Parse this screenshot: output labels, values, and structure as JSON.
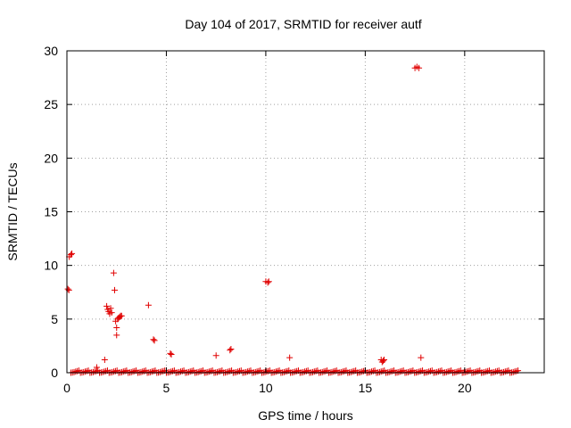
{
  "chart_data": {
    "type": "scatter",
    "title": "Day 104 of 2017, SRMTID for receiver autf",
    "xlabel": "GPS time / hours",
    "ylabel": "SRMTID / TECUs",
    "xlim": [
      0,
      24
    ],
    "ylim": [
      0,
      30
    ],
    "xticks": [
      0,
      5,
      10,
      15,
      20
    ],
    "yticks": [
      0,
      5,
      10,
      15,
      20,
      25,
      30
    ],
    "grid": true,
    "marker": "+",
    "colors": {
      "series": "#e00000",
      "grid": "#a0a0a0",
      "axis": "#000000"
    },
    "points": [
      [
        0.05,
        7.8
      ],
      [
        0.1,
        7.7
      ],
      [
        0.12,
        10.8
      ],
      [
        0.2,
        11.0
      ],
      [
        0.25,
        11.1
      ],
      [
        1.5,
        0.5
      ],
      [
        1.9,
        1.2
      ],
      [
        2.0,
        6.2
      ],
      [
        2.05,
        5.9
      ],
      [
        2.1,
        5.7
      ],
      [
        2.15,
        5.5
      ],
      [
        2.2,
        6.0
      ],
      [
        2.25,
        5.6
      ],
      [
        2.35,
        9.3
      ],
      [
        2.4,
        7.7
      ],
      [
        2.45,
        4.8
      ],
      [
        2.5,
        4.2
      ],
      [
        2.5,
        3.5
      ],
      [
        2.55,
        5.0
      ],
      [
        2.6,
        5.1
      ],
      [
        2.65,
        5.2
      ],
      [
        2.7,
        5.3
      ],
      [
        2.75,
        5.3
      ],
      [
        4.1,
        6.3
      ],
      [
        4.35,
        3.1
      ],
      [
        4.4,
        3.0
      ],
      [
        5.2,
        1.8
      ],
      [
        5.25,
        1.7
      ],
      [
        7.5,
        1.6
      ],
      [
        8.2,
        2.1
      ],
      [
        8.25,
        2.2
      ],
      [
        10.0,
        8.5
      ],
      [
        10.1,
        8.4
      ],
      [
        10.15,
        8.5
      ],
      [
        11.2,
        1.4
      ],
      [
        15.8,
        1.2
      ],
      [
        15.85,
        1.0
      ],
      [
        15.9,
        1.1
      ],
      [
        15.95,
        1.2
      ],
      [
        17.5,
        28.4
      ],
      [
        17.6,
        28.5
      ],
      [
        17.7,
        28.4
      ],
      [
        17.8,
        1.4
      ]
    ],
    "baseline": {
      "x_start": 0.2,
      "x_end": 22.7,
      "step": 0.08,
      "y_values": [
        0.0,
        0.02,
        0.05,
        0.1,
        0.15,
        0.2
      ]
    }
  }
}
